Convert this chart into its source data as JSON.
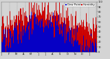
{
  "background_color": "#d4d4d4",
  "plot_bg_color": "#d4d4d4",
  "bar_color_red": "#cc0000",
  "bar_color_blue": "#0000cc",
  "legend_labels": [
    "Dew Point",
    "Humidity"
  ],
  "legend_colors": [
    "#0000cc",
    "#cc0000"
  ],
  "n_points": 365,
  "seed": 42,
  "ylim": [
    0,
    100
  ],
  "ylabel_ticks": [
    0,
    10,
    20,
    30,
    40,
    50,
    60,
    70,
    80,
    90,
    100
  ],
  "n_gridlines": 13,
  "tick_fontsize": 2.5,
  "legend_fontsize": 2.8,
  "bar_linewidth": 0.7
}
